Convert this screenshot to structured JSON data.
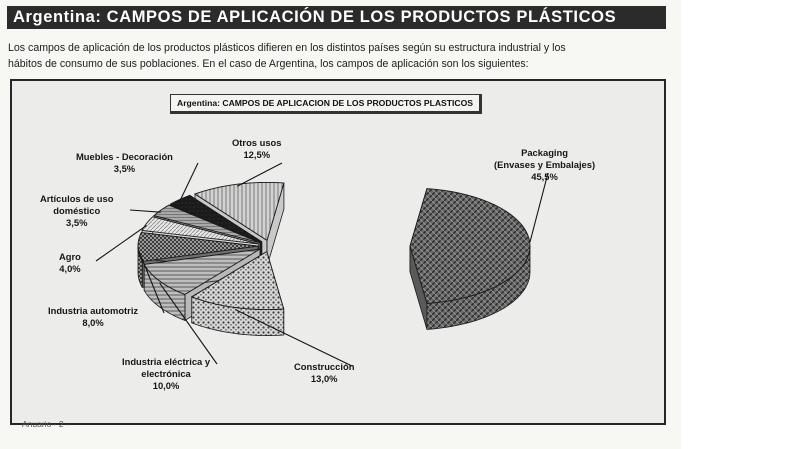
{
  "header": {
    "title": "Argentina: CAMPOS DE APLICACIÓN DE LOS PRODUCTOS PLÁSTICOS"
  },
  "intro": {
    "line1": "Los campos de aplicación de los productos plásticos difieren en los distintos países según su estructura industrial y los",
    "line2": "hábitos de consumo de sus poblaciones. En el caso de Argentina, los campos de aplicación son los siguientes:"
  },
  "footer": {
    "text": "Anuario - 2 -"
  },
  "chart_data": {
    "type": "pie",
    "title": "Argentina: CAMPOS DE APLICACION DE LOS PRODUCTOS PLASTICOS",
    "slices": [
      {
        "label_lines": [
          "Packaging",
          "(Envases y Embalajes)"
        ],
        "value": 45.5,
        "value_text": "45,5%",
        "exploded": true,
        "color": "#5a5a5a"
      },
      {
        "label_lines": [
          "Construcción"
        ],
        "value": 13.0,
        "value_text": "13,0%",
        "exploded": false,
        "color": "#8a8a8a"
      },
      {
        "label_lines": [
          "Industria eléctrica y",
          "electrónica"
        ],
        "value": 10.0,
        "value_text": "10,0%",
        "exploded": false,
        "color": "#b8b8b8"
      },
      {
        "label_lines": [
          "Industria automotriz"
        ],
        "value": 8.0,
        "value_text": "8,0%",
        "exploded": false,
        "color": "#6e6e6e"
      },
      {
        "label_lines": [
          "Agro"
        ],
        "value": 4.0,
        "value_text": "4,0%",
        "exploded": false,
        "color": "#d8d8d8"
      },
      {
        "label_lines": [
          "Artículos de uso",
          "doméstico"
        ],
        "value": 3.5,
        "value_text": "3,5%",
        "exploded": false,
        "color": "#9c9c9c"
      },
      {
        "label_lines": [
          "Muebles - Decoración"
        ],
        "value": 3.5,
        "value_text": "3,5%",
        "exploded": false,
        "color": "#1e1e1e"
      },
      {
        "label_lines": [
          "Otros usos"
        ],
        "value": 12.5,
        "value_text": "12,5%",
        "exploded": false,
        "color": "#c9c9c9"
      }
    ]
  }
}
